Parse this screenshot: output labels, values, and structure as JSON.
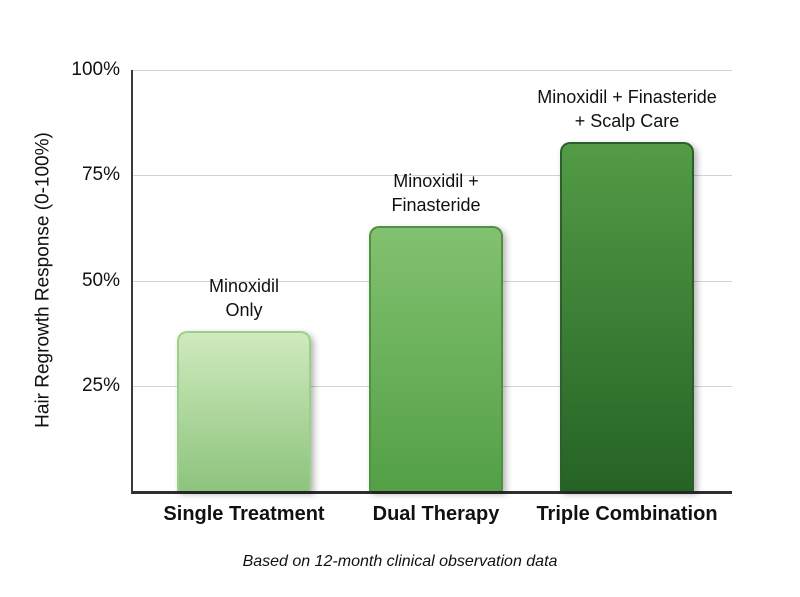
{
  "chart_data": {
    "type": "bar",
    "title": "",
    "xlabel": "",
    "ylabel": "Hair Regrowth Response (0-100%)",
    "ylim": [
      0,
      100
    ],
    "grid": true,
    "legend": false,
    "categories": [
      "Single Treatment",
      "Dual Therapy",
      "Triple Combination"
    ],
    "values": [
      38,
      63,
      83
    ],
    "y_ticks": [
      {
        "label": "100%",
        "value": 100
      },
      {
        "label": "75%",
        "value": 75
      },
      {
        "label": "50%",
        "value": 50
      },
      {
        "label": "25%",
        "value": 25
      }
    ],
    "bars": [
      {
        "category": "Single Treatment",
        "value": 38,
        "label_line1": "Minoxidil",
        "label_line2": "Only",
        "color_top": "#cfeabe",
        "color_bottom": "#8dc47c",
        "border_color": "#9ccf8a"
      },
      {
        "category": "Dual Therapy",
        "value": 63,
        "label_line1": "Minoxidil +",
        "label_line2": "Finasteride",
        "color_top": "#82c170",
        "color_bottom": "#53a046",
        "border_color": "#4e9140"
      },
      {
        "category": "Triple Combination",
        "value": 83,
        "label_line1": "Minoxidil + Finasteride",
        "label_line2": "+ Scalp Care",
        "color_top": "#539b46",
        "color_bottom": "#256325",
        "border_color": "#2c5f2b"
      }
    ],
    "caption": "Based on 12-month clinical observation data",
    "colors": {
      "axis": "#3a3a3a",
      "gridline": "#d3d3d3",
      "text": "#111111",
      "background": "#ffffff"
    }
  }
}
